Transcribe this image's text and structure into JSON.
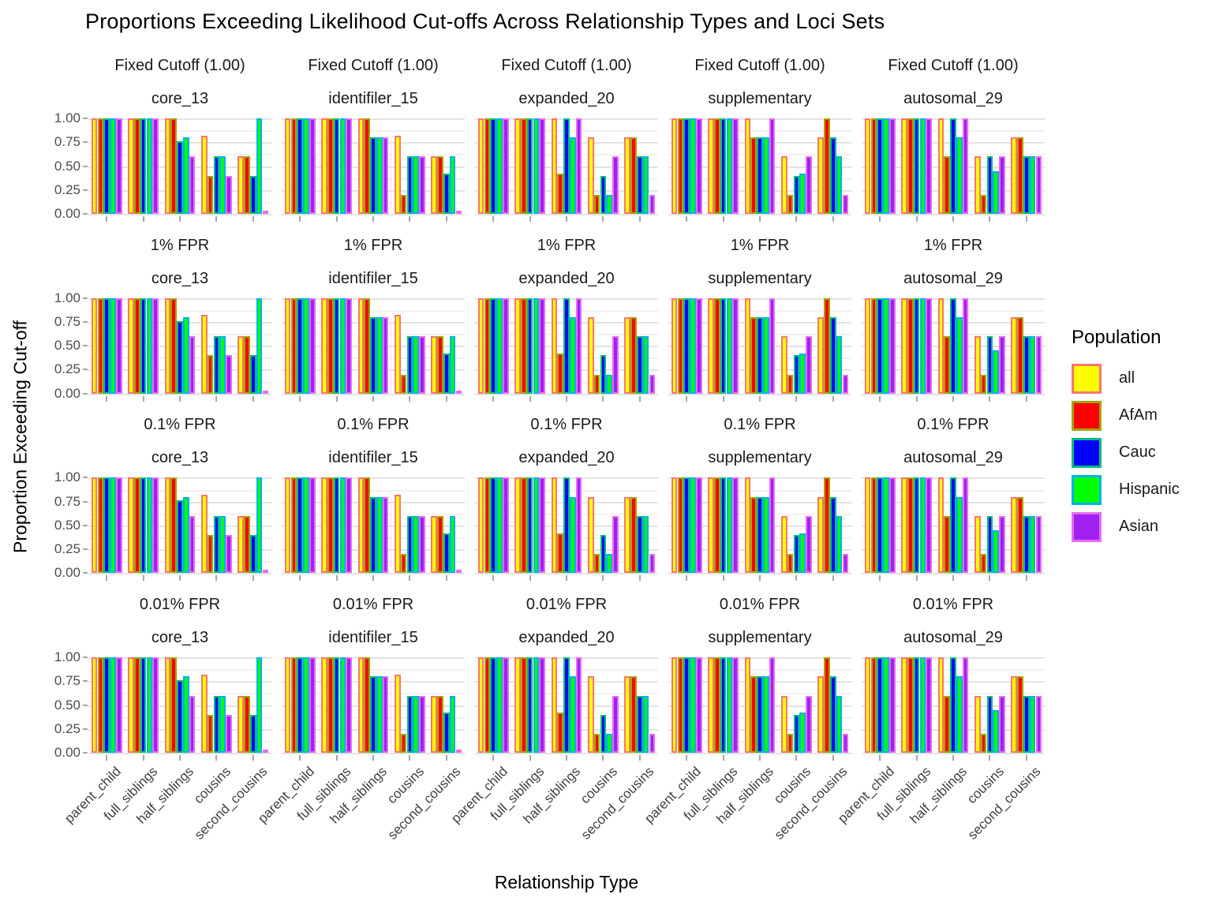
{
  "title": "Proportions Exceeding Likelihood Cut-offs Across Relationship Types and Loci Sets",
  "axes": {
    "y_label": "Proportion Exceeding Cut-off",
    "x_label": "Relationship Type",
    "y_ticks": [
      "1.00",
      "0.75",
      "0.50",
      "0.25",
      "0.00"
    ]
  },
  "legend": {
    "title": "Population",
    "position": "right",
    "entries": [
      {
        "label": "all",
        "fill": "#FFFF00",
        "outline": "#F8766D"
      },
      {
        "label": "AfAm",
        "fill": "#FF0000",
        "outline": "#A3A500"
      },
      {
        "label": "Cauc",
        "fill": "#0000FF",
        "outline": "#00BF7D"
      },
      {
        "label": "Hispanic",
        "fill": "#00FF00",
        "outline": "#00B0F6"
      },
      {
        "label": "Asian",
        "fill": "#A020F0",
        "outline": "#E76BF3"
      }
    ]
  },
  "chart_data": {
    "type": "bar",
    "title": "Proportions Exceeding Likelihood Cut-offs Across Relationship Types and Loci Sets",
    "xlabel": "Relationship Type",
    "ylabel": "Proportion Exceeding Cut-off",
    "ylim": [
      0,
      1
    ],
    "grid": true,
    "legend_position": "right",
    "facet_rows": [
      "Fixed Cutoff (1.00)",
      "1% FPR",
      "0.1% FPR",
      "0.01% FPR"
    ],
    "facet_cols": [
      "core_13",
      "identifiler_15",
      "expanded_20",
      "supplementary",
      "autosomal_29"
    ],
    "categories": [
      "parent_child",
      "full_siblings",
      "half_siblings",
      "cousins",
      "second_cousins"
    ],
    "series_names": [
      "all",
      "AfAm",
      "Cauc",
      "Hispanic",
      "Asian"
    ],
    "values_identical_across_facet_rows": true,
    "values": {
      "core_13": [
        [
          1.0,
          1.0,
          1.0,
          1.0,
          1.0
        ],
        [
          1.0,
          1.0,
          1.0,
          1.0,
          1.0
        ],
        [
          1.0,
          1.0,
          0.76,
          0.8,
          0.6
        ],
        [
          0.82,
          0.4,
          0.6,
          0.6,
          0.4
        ],
        [
          0.6,
          0.6,
          0.4,
          1.0,
          0.02
        ]
      ],
      "identifiler_15": [
        [
          1.0,
          1.0,
          1.0,
          1.0,
          1.0
        ],
        [
          1.0,
          1.0,
          1.0,
          1.0,
          1.0
        ],
        [
          1.0,
          1.0,
          0.8,
          0.8,
          0.8
        ],
        [
          0.82,
          0.2,
          0.6,
          0.6,
          0.6
        ],
        [
          0.6,
          0.6,
          0.42,
          0.6,
          0.02
        ]
      ],
      "expanded_20": [
        [
          1.0,
          1.0,
          1.0,
          1.0,
          1.0
        ],
        [
          1.0,
          1.0,
          1.0,
          1.0,
          1.0
        ],
        [
          1.0,
          0.42,
          1.0,
          0.8,
          1.0
        ],
        [
          0.8,
          0.2,
          0.4,
          0.2,
          0.6
        ],
        [
          0.8,
          0.8,
          0.6,
          0.6,
          0.2
        ]
      ],
      "supplementary": [
        [
          1.0,
          1.0,
          1.0,
          1.0,
          1.0
        ],
        [
          1.0,
          1.0,
          1.0,
          1.0,
          1.0
        ],
        [
          1.0,
          0.8,
          0.8,
          0.8,
          1.0
        ],
        [
          0.6,
          0.2,
          0.4,
          0.42,
          0.6
        ],
        [
          0.8,
          1.0,
          0.8,
          0.6,
          0.2
        ]
      ],
      "autosomal_29": [
        [
          1.0,
          1.0,
          1.0,
          1.0,
          1.0
        ],
        [
          1.0,
          1.0,
          1.0,
          1.0,
          1.0
        ],
        [
          1.0,
          0.6,
          1.0,
          0.8,
          1.0
        ],
        [
          0.6,
          0.2,
          0.6,
          0.45,
          0.6
        ],
        [
          0.8,
          0.8,
          0.6,
          0.6,
          0.6
        ]
      ]
    }
  }
}
